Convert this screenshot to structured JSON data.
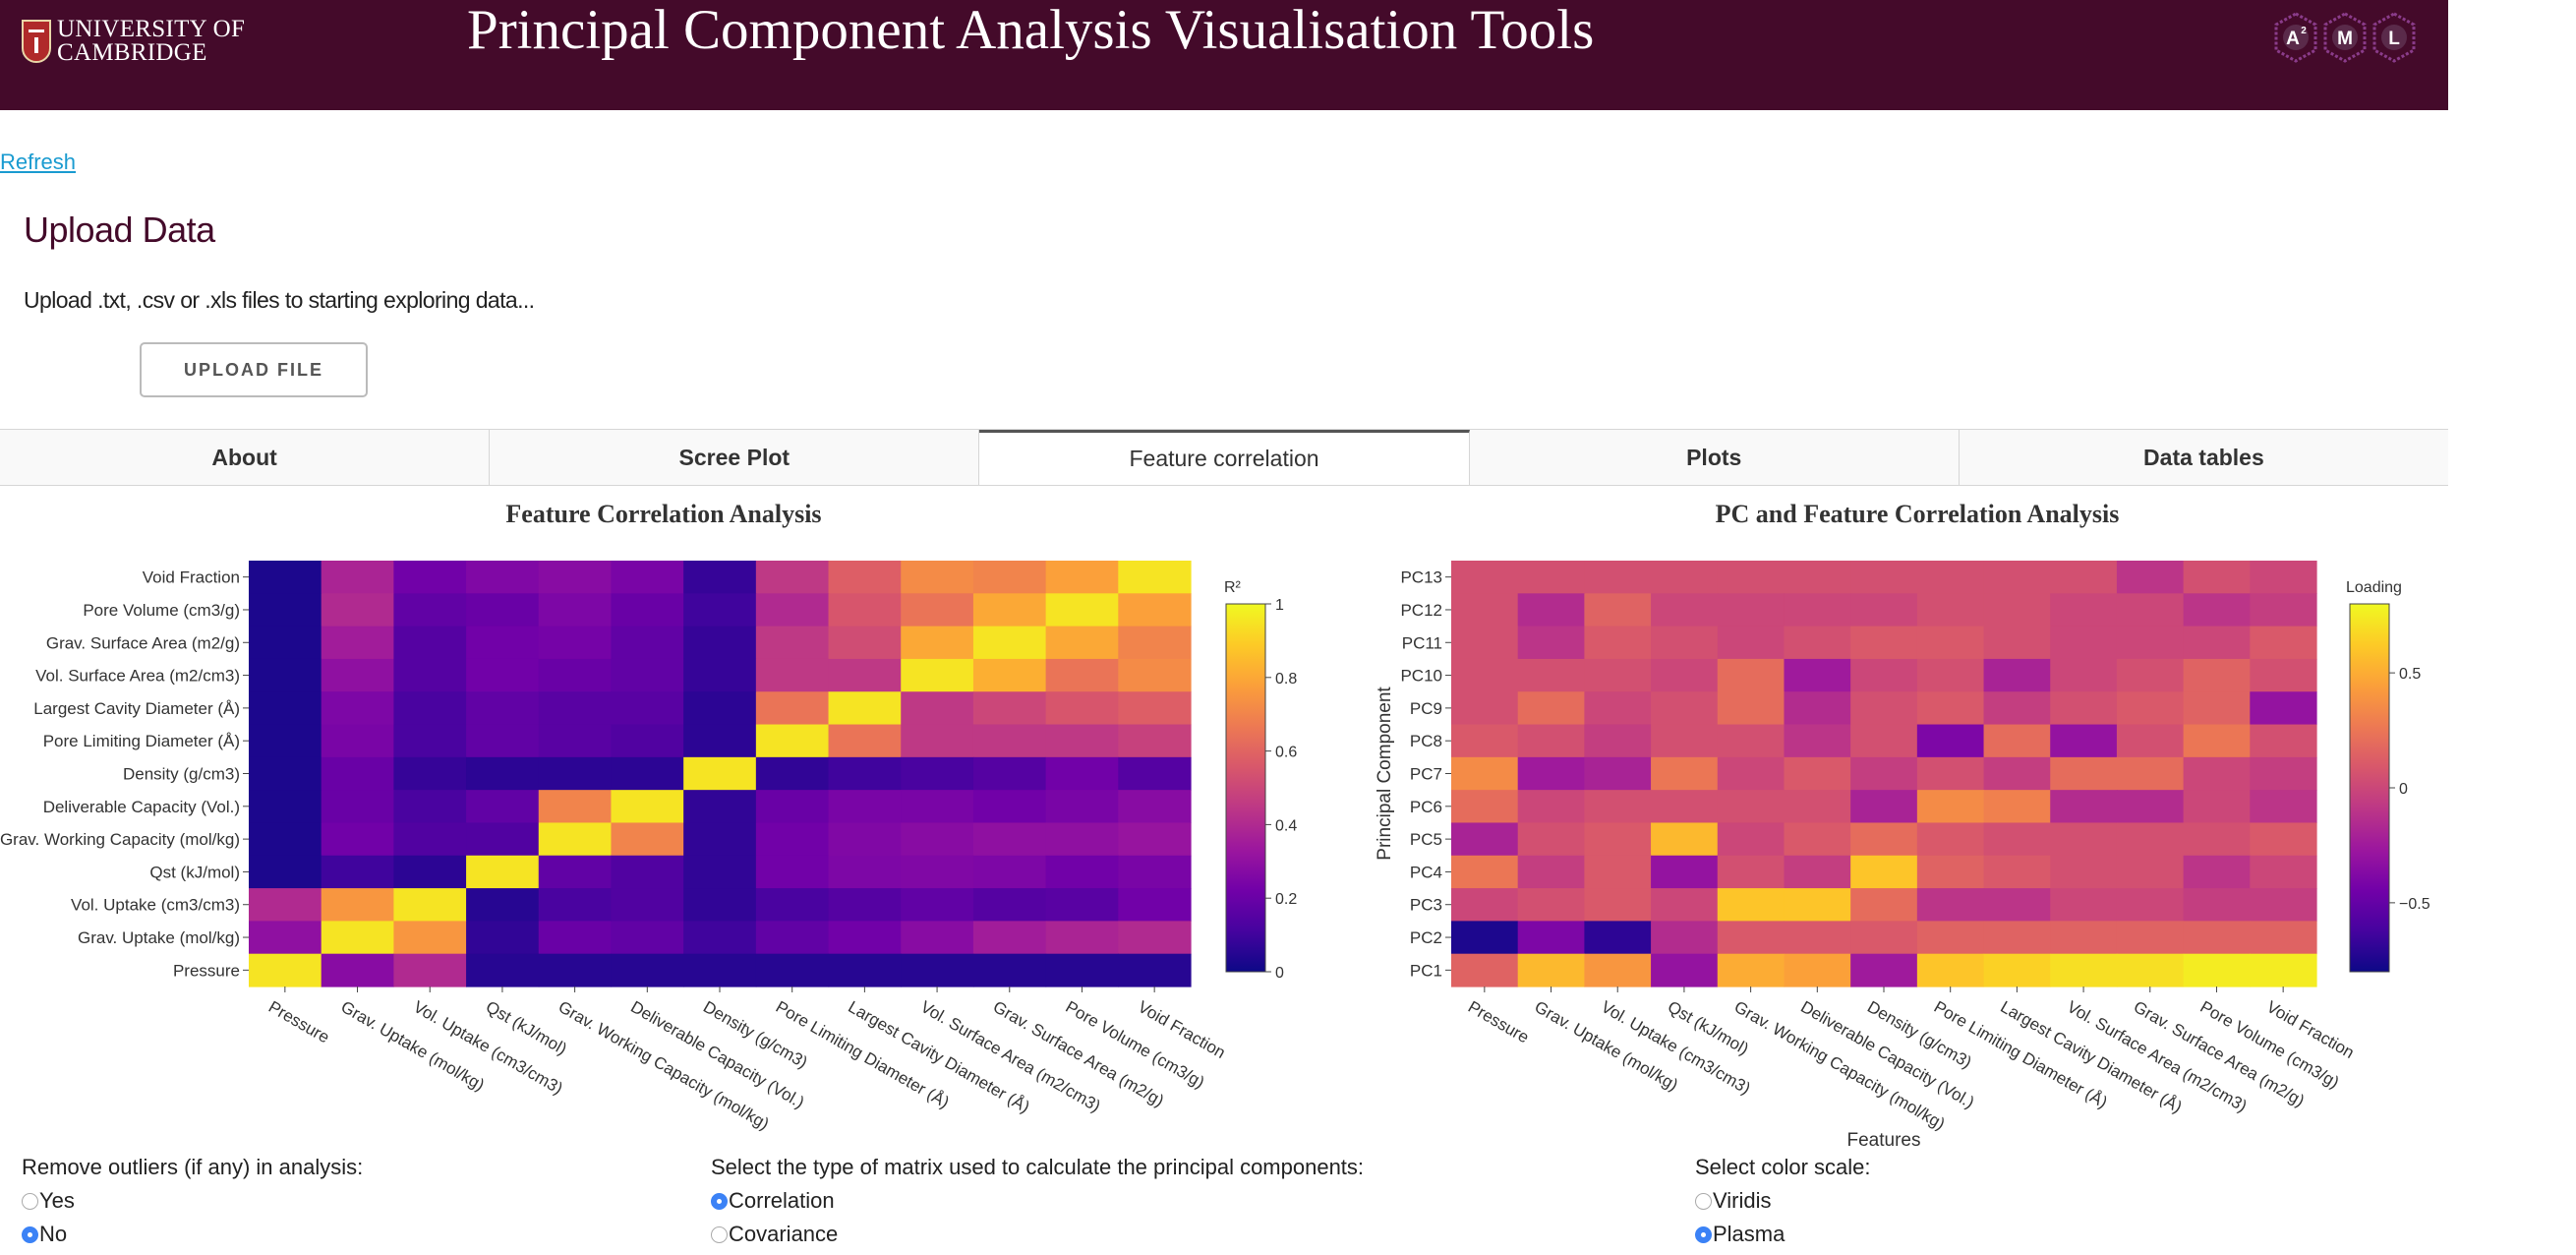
{
  "header": {
    "logo_line1": "UNIVERSITY OF",
    "logo_line2": "CAMBRIDGE",
    "title": "Principal Component Analysis Visualisation Tools",
    "badge": [
      "A",
      "M",
      "L"
    ],
    "badge_superscript": "2"
  },
  "refresh_label": "Refresh",
  "upload": {
    "title": "Upload Data",
    "description": "Upload .txt, .csv or .xls files to starting exploring data...",
    "button_label": "UPLOAD FILE"
  },
  "tabs": [
    {
      "label": "About",
      "active": false
    },
    {
      "label": "Scree Plot",
      "active": false
    },
    {
      "label": "Feature correlation",
      "active": true
    },
    {
      "label": "Plots",
      "active": false
    },
    {
      "label": "Data tables",
      "active": false
    }
  ],
  "options": {
    "outliers": {
      "label": "Remove outliers (if any) in analysis:",
      "choices": [
        "Yes",
        "No"
      ],
      "selected": "No"
    },
    "matrix": {
      "label": "Select the type of matrix used to calculate the principal components:",
      "choices": [
        "Correlation",
        "Covariance"
      ],
      "selected": "Correlation"
    },
    "colorscale": {
      "label": "Select color scale:",
      "choices": [
        "Viridis",
        "Plasma"
      ],
      "selected": "Plasma"
    }
  },
  "colors": {
    "header_bg": "#440a2a",
    "link": "#1a9bd0",
    "plasma": [
      "#0d0887",
      "#46039f",
      "#7201a8",
      "#9c179e",
      "#bd3786",
      "#d8576b",
      "#ed7953",
      "#fb9f3a",
      "#fdca26",
      "#f0f921"
    ]
  },
  "chart_data": [
    {
      "type": "heatmap",
      "title": "Feature Correlation Analysis",
      "colorbar_title": "R²",
      "colorbar_ticks": [
        "0",
        "0.2",
        "0.4",
        "0.6",
        "0.8",
        "1"
      ],
      "zlim": [
        0,
        1
      ],
      "x": [
        "Pressure",
        "Grav. Uptake (mol/kg)",
        "Vol. Uptake (cm3/cm3)",
        "Qst (kJ/mol)",
        "Grav. Working Capacity (mol/kg)",
        "Deliverable Capacity (Vol.)",
        "Density (g/cm3)",
        "Pore Limiting Diameter (Å)",
        "Largest Cavity Diameter (Å)",
        "Vol. Surface Area (m2/cm3)",
        "Grav. Surface Area (m2/g)",
        "Pore Volume (cm3/g)",
        "Void Fraction"
      ],
      "y": [
        "Void Fraction",
        "Pore Volume (cm3/g)",
        "Grav. Surface Area (m2/g)",
        "Vol. Surface Area (m2/cm3)",
        "Largest Cavity Diameter (Å)",
        "Pore Limiting Diameter (Å)",
        "Density (g/cm3)",
        "Deliverable Capacity (Vol.)",
        "Grav. Working Capacity (mol/kg)",
        "Qst (kJ/mol)",
        "Vol. Uptake (cm3/cm3)",
        "Grav. Uptake (mol/kg)",
        "Pressure"
      ],
      "z": [
        [
          0.03,
          0.38,
          0.22,
          0.26,
          0.28,
          0.24,
          0.08,
          0.45,
          0.58,
          0.72,
          0.7,
          0.78,
          0.95
        ],
        [
          0.03,
          0.4,
          0.18,
          0.2,
          0.25,
          0.2,
          0.1,
          0.4,
          0.55,
          0.65,
          0.8,
          0.95,
          0.78
        ],
        [
          0.03,
          0.35,
          0.15,
          0.22,
          0.23,
          0.18,
          0.08,
          0.45,
          0.52,
          0.8,
          0.95,
          0.8,
          0.7
        ],
        [
          0.03,
          0.3,
          0.15,
          0.22,
          0.2,
          0.18,
          0.08,
          0.45,
          0.45,
          0.95,
          0.82,
          0.65,
          0.72
        ],
        [
          0.03,
          0.25,
          0.12,
          0.18,
          0.16,
          0.16,
          0.06,
          0.65,
          0.95,
          0.45,
          0.5,
          0.55,
          0.58
        ],
        [
          0.03,
          0.24,
          0.12,
          0.18,
          0.16,
          0.14,
          0.06,
          0.95,
          0.65,
          0.45,
          0.45,
          0.45,
          0.48
        ],
        [
          0.03,
          0.2,
          0.08,
          0.06,
          0.06,
          0.06,
          0.95,
          0.07,
          0.1,
          0.12,
          0.15,
          0.22,
          0.15
        ],
        [
          0.03,
          0.2,
          0.12,
          0.18,
          0.7,
          0.95,
          0.07,
          0.2,
          0.24,
          0.24,
          0.22,
          0.24,
          0.28
        ],
        [
          0.03,
          0.22,
          0.14,
          0.14,
          0.95,
          0.7,
          0.07,
          0.22,
          0.26,
          0.28,
          0.3,
          0.3,
          0.32
        ],
        [
          0.03,
          0.1,
          0.06,
          0.95,
          0.18,
          0.14,
          0.07,
          0.22,
          0.25,
          0.26,
          0.25,
          0.22,
          0.24
        ],
        [
          0.4,
          0.75,
          0.95,
          0.05,
          0.12,
          0.14,
          0.07,
          0.12,
          0.15,
          0.18,
          0.15,
          0.16,
          0.22
        ],
        [
          0.3,
          0.95,
          0.75,
          0.07,
          0.2,
          0.18,
          0.1,
          0.18,
          0.22,
          0.28,
          0.35,
          0.38,
          0.4
        ],
        [
          0.95,
          0.28,
          0.4,
          0.05,
          0.05,
          0.05,
          0.05,
          0.05,
          0.05,
          0.05,
          0.05,
          0.05,
          0.05
        ]
      ]
    },
    {
      "type": "heatmap",
      "title": "PC and Feature Correlation Analysis",
      "xlabel": "Features",
      "ylabel": "Principal Component",
      "colorbar_title": "Loading",
      "colorbar_ticks": [
        "0.5",
        "0",
        "−0.5"
      ],
      "zlim": [
        -0.8,
        0.8
      ],
      "x": [
        "Pressure",
        "Grav. Uptake (mol/kg)",
        "Vol. Uptake (cm3/cm3)",
        "Qst (kJ/mol)",
        "Grav. Working Capacity (mol/kg)",
        "Deliverable Capacity (Vol.)",
        "Density (g/cm3)",
        "Pore Limiting Diameter (Å)",
        "Largest Cavity Diameter (Å)",
        "Vol. Surface Area (m2/cm3)",
        "Grav. Surface Area (m2/g)",
        "Pore Volume (cm3/g)",
        "Void Fraction"
      ],
      "y": [
        "PC13",
        "PC12",
        "PC11",
        "PC10",
        "PC9",
        "PC8",
        "PC7",
        "PC6",
        "PC5",
        "PC4",
        "PC3",
        "PC2",
        "PC1"
      ],
      "z": [
        [
          0.05,
          0.05,
          0.05,
          0.05,
          0.05,
          0.05,
          0.05,
          0.05,
          0.05,
          0.05,
          -0.1,
          0.05,
          0.0
        ],
        [
          0.05,
          -0.15,
          0.15,
          0.0,
          0.0,
          0.0,
          0.0,
          0.05,
          0.05,
          0.0,
          0.0,
          -0.1,
          -0.05
        ],
        [
          0.05,
          -0.1,
          0.1,
          0.05,
          0.0,
          0.05,
          0.1,
          0.1,
          0.05,
          0.0,
          0.0,
          0.0,
          0.1
        ],
        [
          0.05,
          0.05,
          0.05,
          0.0,
          0.2,
          -0.25,
          0.0,
          0.05,
          -0.2,
          0.0,
          0.05,
          0.15,
          0.05
        ],
        [
          0.05,
          0.2,
          0.0,
          0.05,
          0.2,
          -0.15,
          0.05,
          0.1,
          -0.05,
          0.05,
          0.1,
          0.15,
          -0.3
        ],
        [
          0.1,
          0.05,
          -0.05,
          0.05,
          0.05,
          -0.1,
          0.05,
          -0.4,
          0.2,
          -0.3,
          0.05,
          0.25,
          0.05
        ],
        [
          0.35,
          -0.25,
          -0.2,
          0.25,
          0.0,
          0.1,
          -0.05,
          0.05,
          -0.05,
          0.2,
          0.2,
          0.0,
          -0.05
        ],
        [
          0.2,
          0.0,
          0.05,
          0.05,
          0.05,
          0.05,
          -0.2,
          0.35,
          0.3,
          -0.15,
          -0.15,
          0.0,
          -0.1
        ],
        [
          -0.2,
          0.05,
          0.1,
          0.55,
          0.0,
          0.1,
          0.2,
          0.1,
          0.05,
          0.05,
          0.05,
          0.05,
          0.1
        ],
        [
          0.25,
          -0.05,
          0.1,
          -0.3,
          0.05,
          -0.05,
          0.6,
          0.15,
          0.1,
          0.05,
          0.05,
          -0.1,
          0.0
        ],
        [
          0.0,
          0.05,
          0.1,
          0.0,
          0.6,
          0.6,
          0.2,
          -0.1,
          -0.1,
          0.0,
          0.0,
          -0.05,
          -0.05
        ],
        [
          -0.75,
          -0.4,
          -0.7,
          -0.15,
          0.1,
          0.1,
          0.1,
          0.15,
          0.15,
          0.15,
          0.15,
          0.15,
          0.15
        ],
        [
          0.15,
          0.55,
          0.4,
          -0.3,
          0.5,
          0.45,
          -0.25,
          0.6,
          0.65,
          0.7,
          0.7,
          0.75,
          0.75
        ]
      ]
    }
  ]
}
